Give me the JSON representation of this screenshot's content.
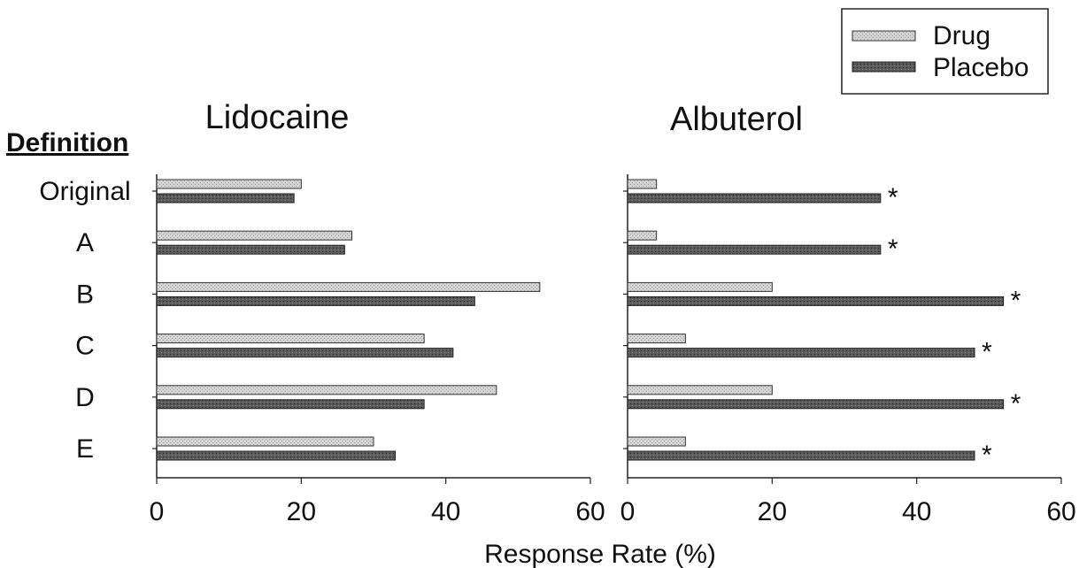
{
  "chart_data": {
    "type": "bar",
    "orientation": "horizontal",
    "category_header": "Definition",
    "categories": [
      "Original",
      "A",
      "B",
      "C",
      "D",
      "E"
    ],
    "xlabel": "Response Rate (%)",
    "xlim": [
      0,
      60
    ],
    "xticks": [
      "0",
      "20",
      "40",
      "60"
    ],
    "legend": {
      "placement": "top-right",
      "entries": [
        "Drug",
        "Placebo"
      ]
    },
    "colors": {
      "drug": "#cfcfcf",
      "placebo": "#505050"
    },
    "significance_marker": "*",
    "panels": [
      {
        "title": "Lidocaine",
        "series": [
          {
            "name": "Drug",
            "values": [
              20,
              27,
              53,
              37,
              47,
              30
            ]
          },
          {
            "name": "Placebo",
            "values": [
              19,
              26,
              44,
              41,
              37,
              33
            ]
          }
        ],
        "significant": [
          false,
          false,
          false,
          false,
          false,
          false
        ]
      },
      {
        "title": "Albuterol",
        "series": [
          {
            "name": "Drug",
            "values": [
              4,
              4,
              20,
              8,
              20,
              8
            ]
          },
          {
            "name": "Placebo",
            "values": [
              35,
              35,
              52,
              48,
              52,
              48
            ]
          }
        ],
        "significant": [
          true,
          true,
          true,
          true,
          true,
          true
        ]
      }
    ]
  }
}
